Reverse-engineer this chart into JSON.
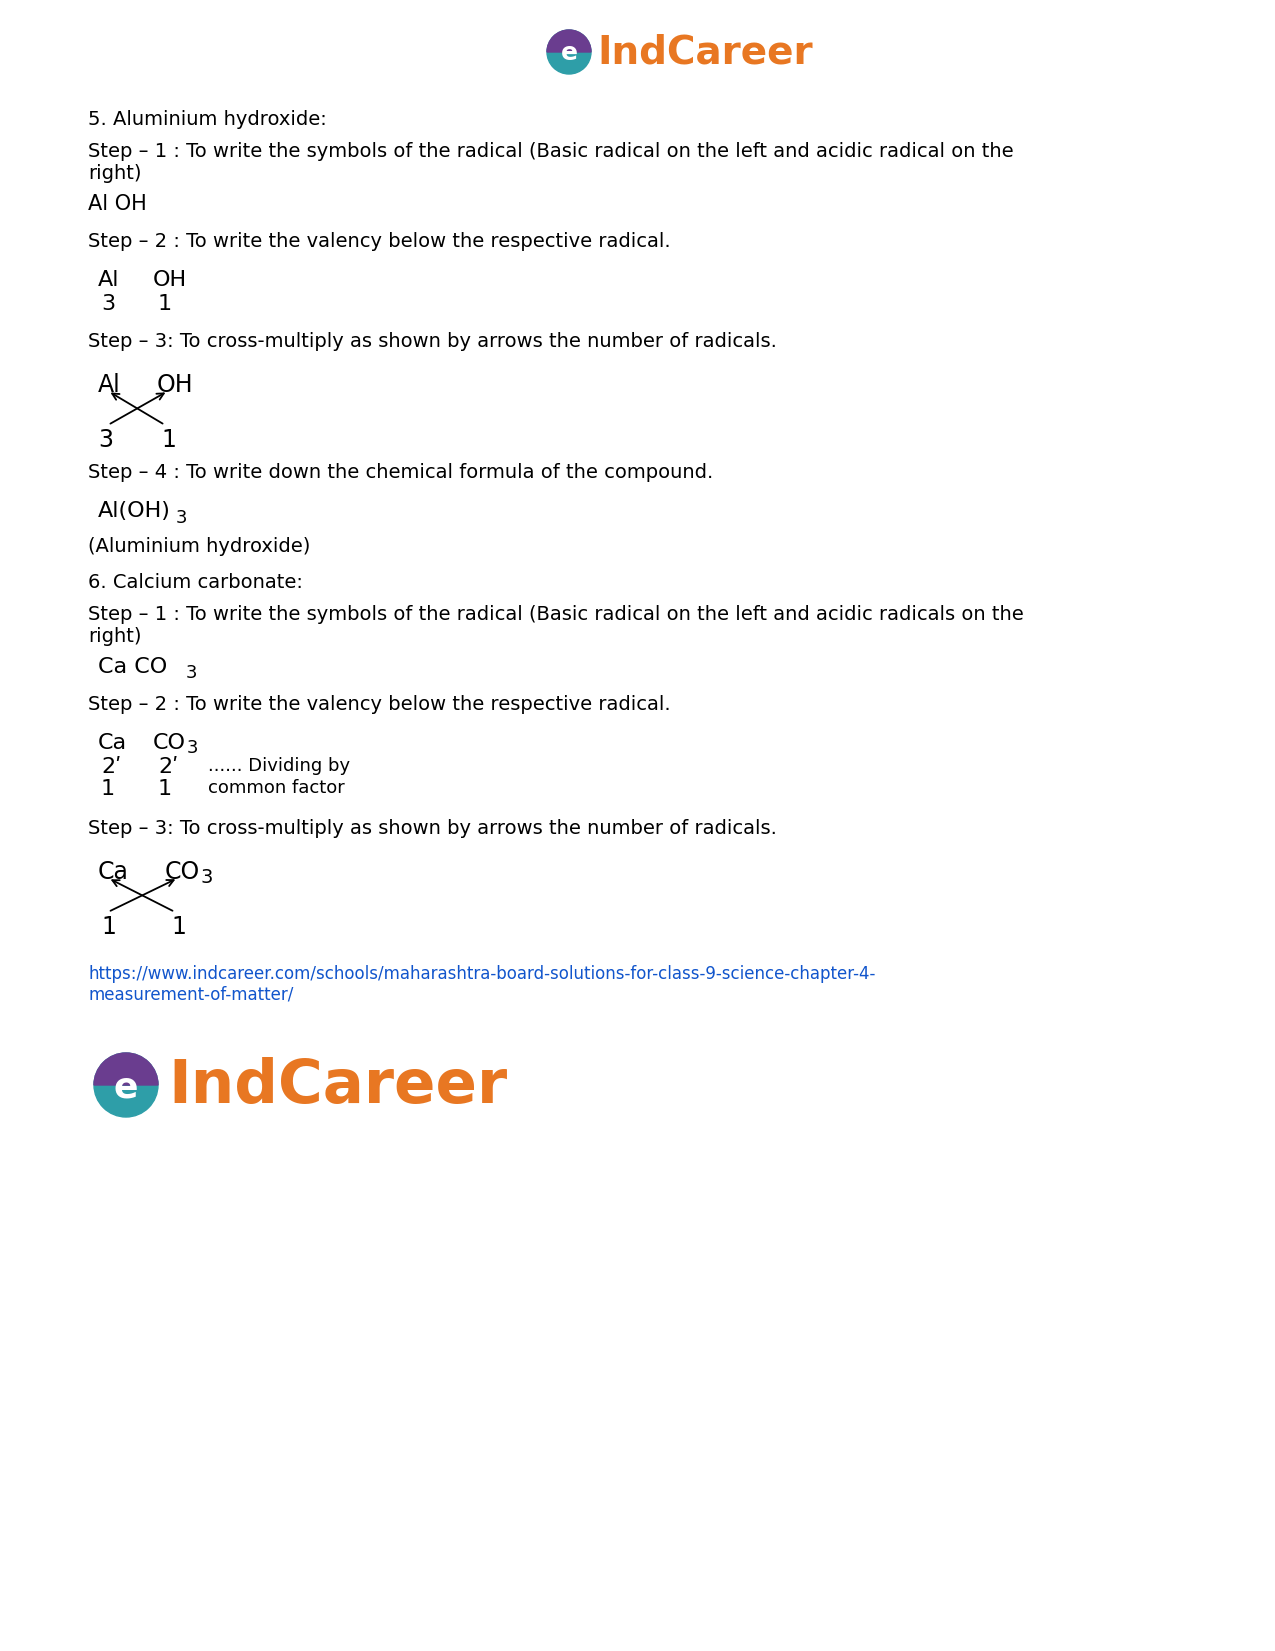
{
  "bg_color": "#ffffff",
  "text_color": "#000000",
  "link_color": "#1155cc",
  "body_fs": 14,
  "heading_fs": 14,
  "mono_fs": 15,
  "lm": 0.075,
  "sections": {
    "heading1": "5. Aluminium hydroxide:",
    "step1_al": "Step – 1 : To write the symbols of the radical (Basic radical on the left and acidic radical on the\nright)",
    "al_oh": "Al OH",
    "step2_al": "Step – 2 : To write the valency below the respective radical.",
    "step3_al": "Step – 3: To cross-multiply as shown by arrows the number of radicals.",
    "step4_al": "Step – 4 : To write down the chemical formula of the compound.",
    "al_formula_main": "Al(OH)",
    "al_formula_sub": "3",
    "al_hydroxide": "(Aluminium hydroxide)",
    "heading2": "6. Calcium carbonate:",
    "step1_ca": "Step – 1 : To write the symbols of the radical (Basic radical on the left and acidic radicals on the\nright)",
    "step2_ca": "Step – 2 : To write the valency below the respective radical.",
    "step3_ca": "Step – 3: To cross-multiply as shown by arrows the number of radicals.",
    "dividing_text": "...... Dividing by",
    "common_factor": "common factor",
    "url_line1": "https://www.indcareer.com/schools/maharashtra-board-solutions-for-class-9-science-chapter-4-",
    "url_line2": "measurement-of-matter/"
  }
}
